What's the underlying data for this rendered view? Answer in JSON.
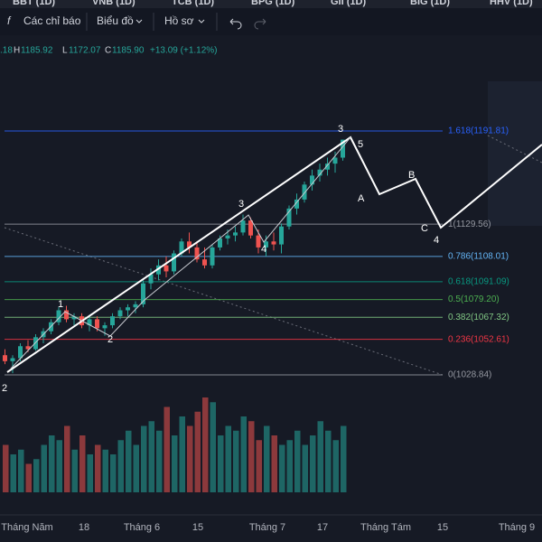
{
  "tabs": [
    "BBT (1D)",
    "VNB (1D)",
    "TCB (1D)",
    "BPG (1D)",
    "GII (1D)",
    "BIG (1D)",
    "HHV (1D)"
  ],
  "toolbar": {
    "fx": "f",
    "indicators": "Các chỉ báo",
    "chart": "Biểu đồ",
    "profile": "Hồ sơ"
  },
  "ohlc": {
    "open": ".18",
    "h_label": "H",
    "high": "1185.92",
    "l_label": "L",
    "low": "1172.07",
    "c_label": "C",
    "close": "1185.90",
    "change": "+13.09 (+1.12%)"
  },
  "fib_levels": [
    {
      "label": "0(1028.84)",
      "price": 1028.84,
      "color": "#9598a1"
    },
    {
      "label": "0.236(1052.61)",
      "price": 1052.61,
      "color": "#f23645"
    },
    {
      "label": "0.382(1067.32)",
      "price": 1067.32,
      "color": "#81c784"
    },
    {
      "label": "0.5(1079.20)",
      "price": 1079.2,
      "color": "#4caf50"
    },
    {
      "label": "0.618(1091.09)",
      "price": 1091.09,
      "color": "#089981"
    },
    {
      "label": "0.786(1108.01)",
      "price": 1108.01,
      "color": "#64b5f6"
    },
    {
      "label": "1(1129.56)",
      "price": 1129.56,
      "color": "#9598a1"
    },
    {
      "label": "1.618(1191.81)",
      "price": 1191.81,
      "color": "#2962ff"
    }
  ],
  "waves": {
    "big_2": "2",
    "big_3": "3",
    "big_4": "4",
    "small_1": "1",
    "small_2": "2",
    "small_3": "3",
    "small_4": "4",
    "small_5": "5",
    "a": "A",
    "b": "B",
    "c": "C"
  },
  "x_axis": [
    "Tháng Năm",
    "18",
    "Tháng 6",
    "15",
    "Tháng 7",
    "17",
    "Tháng Tám",
    "15",
    "Tháng 9"
  ],
  "candles": [
    [
      1042,
      1046,
      1036,
      1038
    ],
    [
      1038,
      1042,
      1030,
      1040
    ],
    [
      1040,
      1050,
      1038,
      1048
    ],
    [
      1048,
      1052,
      1044,
      1046
    ],
    [
      1046,
      1056,
      1045,
      1054
    ],
    [
      1054,
      1060,
      1050,
      1058
    ],
    [
      1058,
      1066,
      1056,
      1064
    ],
    [
      1064,
      1074,
      1062,
      1072
    ],
    [
      1072,
      1075,
      1064,
      1066
    ],
    [
      1066,
      1070,
      1062,
      1068
    ],
    [
      1068,
      1070,
      1060,
      1062
    ],
    [
      1062,
      1068,
      1058,
      1066
    ],
    [
      1066,
      1068,
      1058,
      1060
    ],
    [
      1060,
      1064,
      1055,
      1062
    ],
    [
      1062,
      1070,
      1060,
      1068
    ],
    [
      1068,
      1074,
      1066,
      1072
    ],
    [
      1072,
      1076,
      1068,
      1074
    ],
    [
      1074,
      1078,
      1070,
      1076
    ],
    [
      1076,
      1092,
      1074,
      1090
    ],
    [
      1090,
      1100,
      1086,
      1096
    ],
    [
      1096,
      1106,
      1092,
      1102
    ],
    [
      1102,
      1108,
      1094,
      1098
    ],
    [
      1098,
      1112,
      1096,
      1110
    ],
    [
      1110,
      1120,
      1108,
      1118
    ],
    [
      1118,
      1124,
      1110,
      1114
    ],
    [
      1114,
      1118,
      1104,
      1106
    ],
    [
      1106,
      1114,
      1100,
      1102
    ],
    [
      1102,
      1116,
      1100,
      1114
    ],
    [
      1114,
      1122,
      1112,
      1120
    ],
    [
      1120,
      1126,
      1116,
      1122
    ],
    [
      1122,
      1128,
      1118,
      1124
    ],
    [
      1124,
      1136,
      1122,
      1132
    ],
    [
      1132,
      1134,
      1120,
      1122
    ],
    [
      1122,
      1126,
      1110,
      1114
    ],
    [
      1114,
      1122,
      1108,
      1118
    ],
    [
      1118,
      1124,
      1112,
      1116
    ],
    [
      1116,
      1130,
      1110,
      1128
    ],
    [
      1128,
      1142,
      1126,
      1140
    ],
    [
      1140,
      1150,
      1136,
      1146
    ],
    [
      1146,
      1158,
      1144,
      1156
    ],
    [
      1156,
      1166,
      1152,
      1162
    ],
    [
      1162,
      1170,
      1158,
      1166
    ],
    [
      1166,
      1174,
      1162,
      1170
    ],
    [
      1170,
      1178,
      1164,
      1174
    ],
    [
      1174,
      1186,
      1172,
      1186
    ]
  ],
  "volume": [
    50,
    40,
    45,
    30,
    35,
    50,
    60,
    55,
    70,
    45,
    60,
    40,
    50,
    45,
    40,
    55,
    65,
    50,
    70,
    75,
    65,
    90,
    60,
    80,
    70,
    85,
    100,
    95,
    60,
    70,
    65,
    80,
    75,
    55,
    70,
    60,
    50,
    55,
    65,
    50,
    60,
    75,
    65,
    55,
    70
  ]
}
